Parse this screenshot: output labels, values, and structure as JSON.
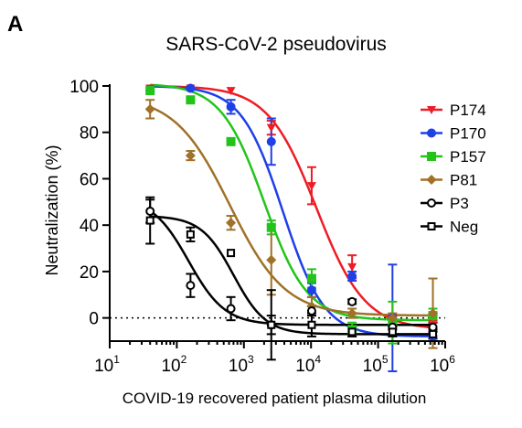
{
  "panel_letter": "A",
  "chart_data": {
    "type": "scatter",
    "title": "SARS-CoV-2 pseudovirus",
    "xlabel": "COVID-19 recovered patient plasma dilution",
    "ylabel": "Neutralization (%)",
    "x_scale": "log",
    "xlim": [
      10,
      1000000
    ],
    "ylim": [
      -10,
      100
    ],
    "x_ticks": [
      {
        "base": "10",
        "exp": "1"
      },
      {
        "base": "10",
        "exp": "2"
      },
      {
        "base": "10",
        "exp": "3"
      },
      {
        "base": "10",
        "exp": "4"
      },
      {
        "base": "10",
        "exp": "5"
      },
      {
        "base": "10",
        "exp": "6"
      }
    ],
    "y_ticks": [
      "0",
      "20",
      "40",
      "60",
      "80",
      "100"
    ],
    "legend_position": "right",
    "reference_line": 0,
    "x": [
      40,
      160,
      640,
      2560,
      10240,
      40960,
      163840,
      655360
    ],
    "series": [
      {
        "name": "P174",
        "color": "#ee1c25",
        "marker": "triangle-down",
        "values": [
          99,
          99,
          98,
          82,
          57,
          22,
          -2,
          -3
        ],
        "errors": [
          0,
          0,
          0,
          3,
          8,
          5,
          3,
          2
        ],
        "fit": {
          "bottom": -5,
          "top": 100,
          "ec50": 12000,
          "hill": 1.2
        }
      },
      {
        "name": "P170",
        "color": "#1f3fe8",
        "marker": "circle",
        "values": [
          98,
          99,
          91,
          76,
          12,
          18,
          0,
          -8
        ],
        "errors": [
          0,
          0,
          3,
          10,
          3,
          2,
          23,
          2
        ],
        "fit": {
          "bottom": -8,
          "top": 100,
          "ec50": 3800,
          "hill": 1.4
        }
      },
      {
        "name": "P157",
        "color": "#22c41a",
        "marker": "square",
        "values": [
          98,
          94,
          76,
          39,
          17,
          -5,
          -2,
          1
        ],
        "errors": [
          0,
          0,
          0,
          3,
          4,
          3,
          9,
          3
        ],
        "fit": {
          "bottom": -1,
          "top": 101,
          "ec50": 2000,
          "hill": 1.35
        }
      },
      {
        "name": "P81",
        "color": "#a07127",
        "marker": "diamond",
        "values": [
          90,
          70,
          41,
          25,
          5,
          2,
          0,
          2
        ],
        "errors": [
          4,
          2,
          3,
          15,
          4,
          2,
          2,
          15
        ],
        "fit": {
          "bottom": 1,
          "top": 96,
          "ec50": 620,
          "hill": 1.05
        }
      },
      {
        "name": "P3",
        "color": "#000000",
        "marker": "circle-open",
        "values": [
          46,
          14,
          4,
          -3,
          3,
          7,
          -4,
          -4
        ],
        "errors": [
          5,
          5,
          5,
          4,
          2,
          1,
          1,
          2
        ],
        "fit": {
          "bottom": -3,
          "top": 52,
          "ec50": 150,
          "hill": 1.6
        }
      },
      {
        "name": "Neg",
        "color": "#000000",
        "marker": "square-open",
        "values": [
          42,
          36,
          28,
          -3,
          -3,
          -6,
          -6,
          -7
        ],
        "errors": [
          10,
          3,
          0,
          15,
          5,
          2,
          2,
          2
        ],
        "fit": {
          "bottom": -7,
          "top": 44,
          "ec50": 700,
          "hill": 1.8
        }
      }
    ]
  }
}
